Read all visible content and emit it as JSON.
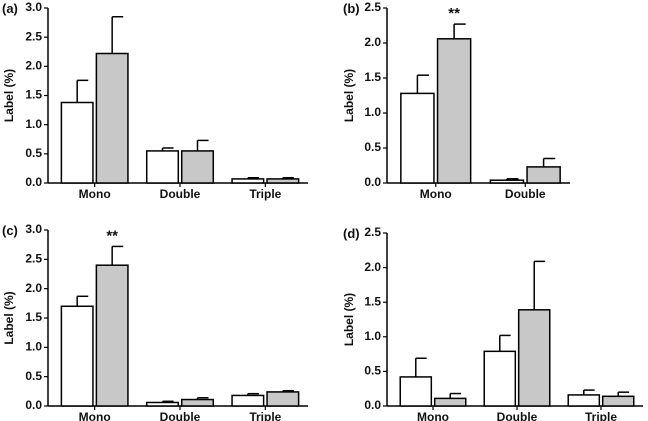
{
  "chart_data": [
    {
      "panel": "(a)",
      "type": "bar",
      "ylabel": "Label (%)",
      "ylim": [
        0,
        3.0
      ],
      "yticks": [
        "0.0",
        "0.5",
        "1.0",
        "1.5",
        "2.0",
        "2.5",
        "3.0"
      ],
      "categories": [
        "Mono",
        "Double",
        "Triple"
      ],
      "series": [
        {
          "fill": "#ffffff",
          "values": [
            1.38,
            0.55,
            0.07
          ],
          "errors": [
            0.38,
            0.05,
            0.02
          ]
        },
        {
          "fill": "#c8c8c8",
          "values": [
            2.22,
            0.55,
            0.07
          ],
          "errors": [
            0.63,
            0.18,
            0.02
          ]
        }
      ],
      "annotations": []
    },
    {
      "panel": "(b)",
      "type": "bar",
      "ylabel": "Label (%)",
      "ylim": [
        0,
        2.5
      ],
      "yticks": [
        "0.0",
        "0.5",
        "1.0",
        "1.5",
        "2.0",
        "2.5"
      ],
      "categories": [
        "Mono",
        "Double"
      ],
      "series": [
        {
          "fill": "#ffffff",
          "values": [
            1.28,
            0.04
          ],
          "errors": [
            0.26,
            0.02
          ]
        },
        {
          "fill": "#c8c8c8",
          "values": [
            2.06,
            0.23
          ],
          "errors": [
            0.21,
            0.12
          ]
        }
      ],
      "annotations": [
        {
          "text": "**",
          "category": 0,
          "series": 1
        }
      ]
    },
    {
      "panel": "(c)",
      "type": "bar",
      "ylabel": "Label (%)",
      "ylim": [
        0,
        3.0
      ],
      "yticks": [
        "0.0",
        "0.5",
        "1.0",
        "1.5",
        "2.0",
        "2.5",
        "3.0"
      ],
      "categories": [
        "Mono",
        "Double",
        "Triple"
      ],
      "series": [
        {
          "fill": "#ffffff",
          "values": [
            1.7,
            0.06,
            0.18
          ],
          "errors": [
            0.17,
            0.02,
            0.03
          ]
        },
        {
          "fill": "#c8c8c8",
          "values": [
            2.4,
            0.11,
            0.24
          ],
          "errors": [
            0.32,
            0.03,
            0.02
          ]
        }
      ],
      "annotations": [
        {
          "text": "**",
          "category": 0,
          "series": 1
        }
      ]
    },
    {
      "panel": "(d)",
      "type": "bar",
      "ylabel": "Label (%)",
      "ylim": [
        0,
        2.5
      ],
      "yticks": [
        "0.0",
        "0.5",
        "1.0",
        "1.5",
        "2.0",
        "2.5"
      ],
      "categories": [
        "Mono",
        "Double",
        "Triple"
      ],
      "series": [
        {
          "fill": "#ffffff",
          "values": [
            0.42,
            0.79,
            0.16
          ],
          "errors": [
            0.27,
            0.23,
            0.07
          ]
        },
        {
          "fill": "#c8c8c8",
          "values": [
            0.11,
            1.39,
            0.14
          ],
          "errors": [
            0.07,
            0.7,
            0.06
          ]
        }
      ],
      "annotations": []
    }
  ]
}
